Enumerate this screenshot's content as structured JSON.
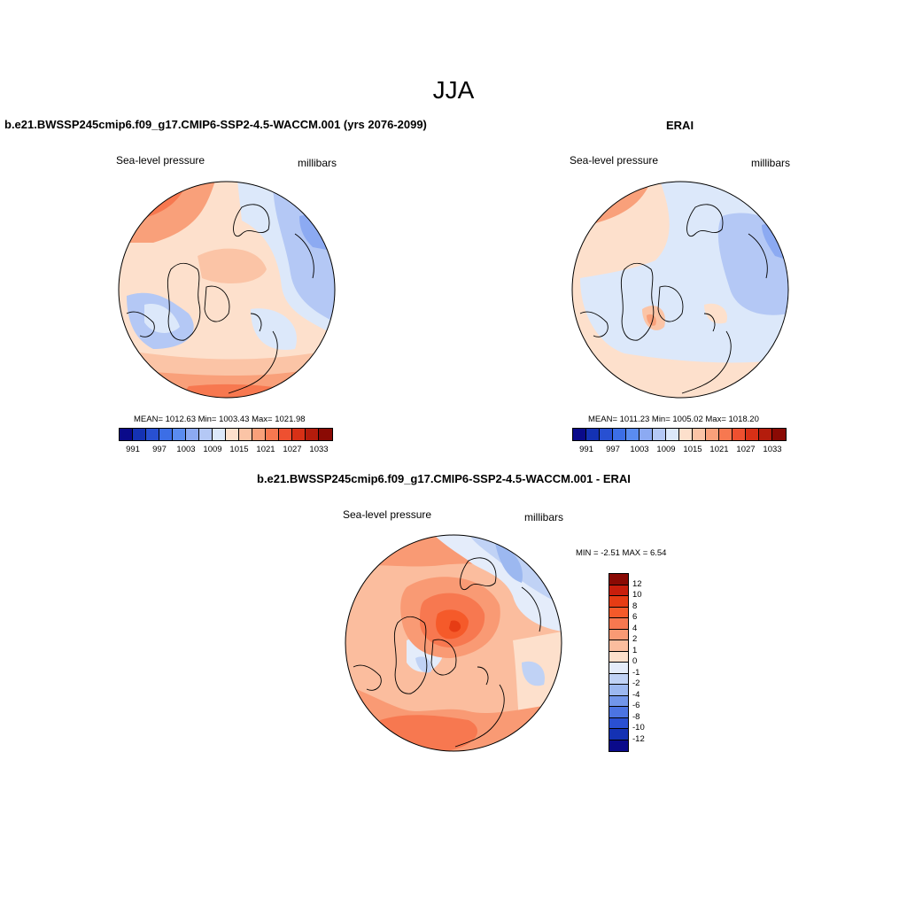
{
  "figure": {
    "season": "JJA",
    "variable": "Sea-level pressure",
    "units": "millibars"
  },
  "panels": {
    "model": {
      "title": "b.e21.BWSSP245cmip6.f09_g17.CMIP6-SSP2-4.5-WACCM.001 (yrs 2076-2099)",
      "variable": "Sea-level pressure",
      "units": "millibars",
      "stats": "MEAN= 1012.63  Min= 1003.43  Max= 1021.98"
    },
    "obs": {
      "title": "ERAI",
      "variable": "Sea-level pressure",
      "units": "millibars",
      "stats": "MEAN= 1011.23  Min= 1005.02  Max= 1018.20"
    },
    "diff": {
      "title": "b.e21.BWSSP245cmip6.f09_g17.CMIP6-SSP2-4.5-WACCM.001 - ERAI",
      "variable": "Sea-level pressure",
      "units": "millibars",
      "stats": "MIN =  -2.51 MAX =   6.54"
    }
  },
  "colorbars": {
    "slp": {
      "colors": [
        "#0a0a8a",
        "#1432b4",
        "#2850d2",
        "#3c6ee6",
        "#5a8cf0",
        "#8caaf2",
        "#b4c8f5",
        "#dce8fa",
        "#fde0cc",
        "#fbc4a6",
        "#f9a07a",
        "#f77850",
        "#ee5030",
        "#d73016",
        "#b41c0c",
        "#8a0a04"
      ],
      "tick_labels": [
        "991",
        "997",
        "1003",
        "1009",
        "1015",
        "1021",
        "1027",
        "1033"
      ]
    },
    "diff": {
      "colors": [
        "#8a0a04",
        "#c81e0c",
        "#e63c14",
        "#f55a2a",
        "#f77850",
        "#f99a74",
        "#fbbd9e",
        "#fde0cc",
        "#e4ecfa",
        "#c0d2f5",
        "#9cb8f0",
        "#7296ea",
        "#4c74e2",
        "#2a50d2",
        "#1432b4",
        "#0a0a8a"
      ],
      "tick_labels": [
        "12",
        "10",
        "8",
        "6",
        "4",
        "2",
        "1",
        "0",
        "-1",
        "-2",
        "-4",
        "-6",
        "-8",
        "-10",
        "-12"
      ]
    }
  }
}
